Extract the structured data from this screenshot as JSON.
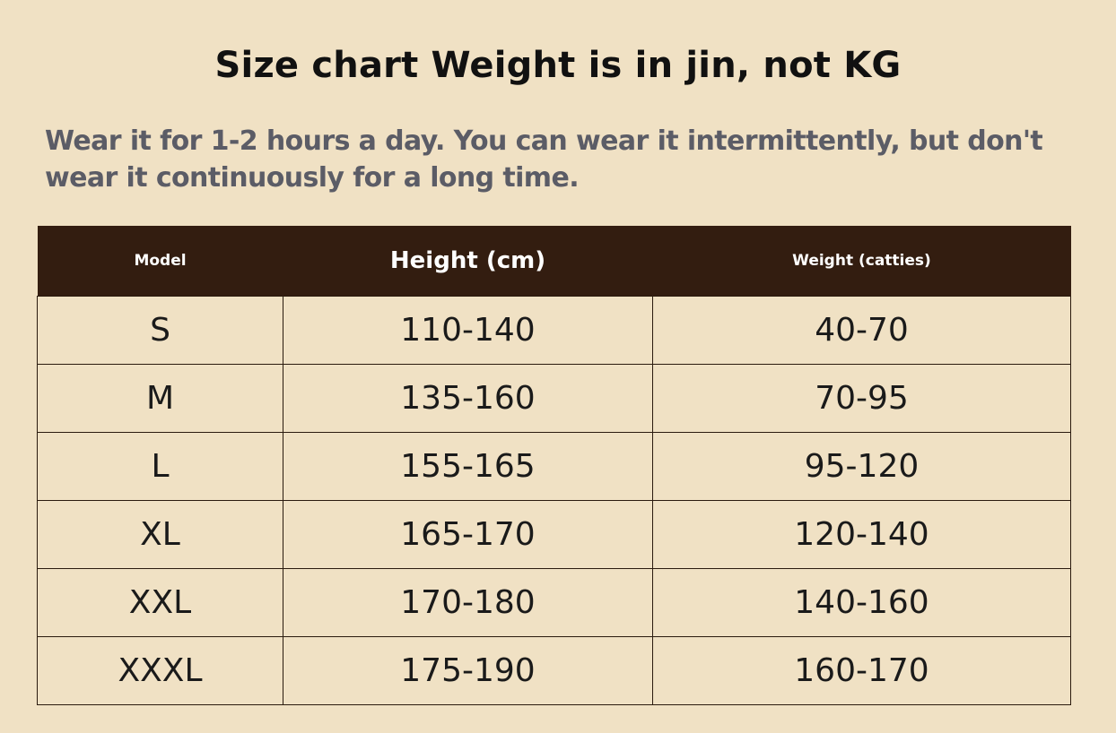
{
  "title": "Size chart Weight is in jin, not KG",
  "subtitle": "Wear it for 1-2 hours a day. You can wear it intermittently, but don't wear it continuously for a long time.",
  "table": {
    "headers": [
      "Model",
      "Height (cm)",
      "Weight (catties)"
    ],
    "rows": [
      [
        "S",
        "110-140",
        "40-70"
      ],
      [
        "M",
        "135-160",
        "70-95"
      ],
      [
        "L",
        "155-165",
        "95-120"
      ],
      [
        "XL",
        "165-170",
        "120-140"
      ],
      [
        "XXL",
        "170-180",
        "140-160"
      ],
      [
        "XXXL",
        "175-190",
        "160-170"
      ]
    ]
  },
  "colors": {
    "background": "#f0e1c4",
    "header": "#331d10",
    "subtitle": "#5b5c66"
  }
}
